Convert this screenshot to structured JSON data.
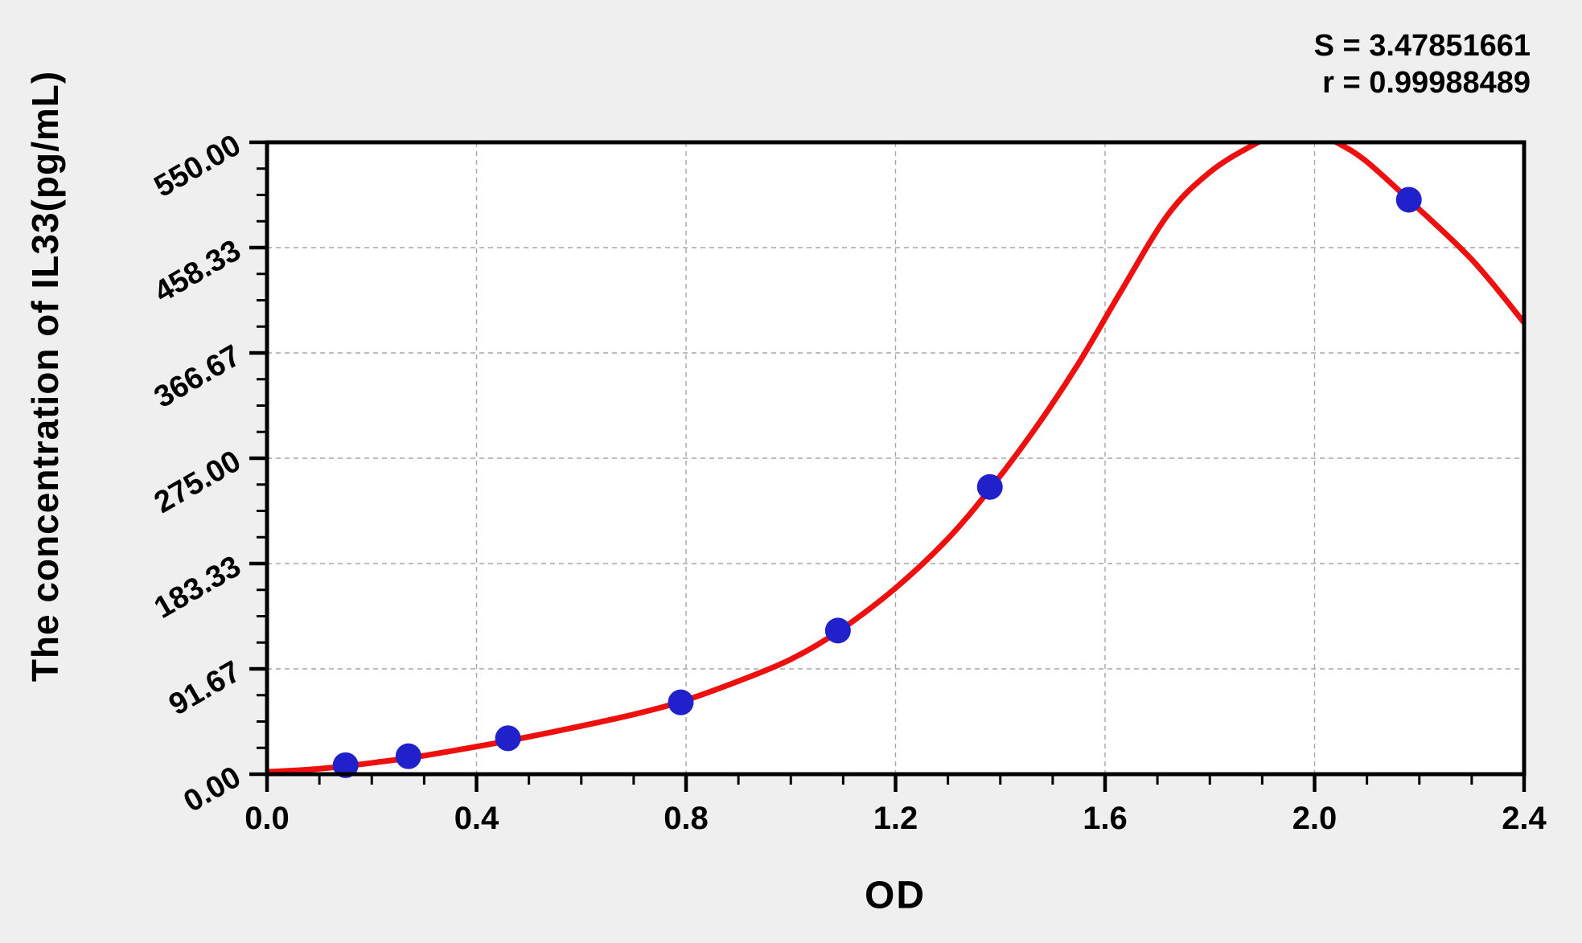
{
  "page": {
    "background_color": "#efefef",
    "plot_background_color": "#ffffff",
    "frame_color": "#000000",
    "gridline_color": "#a6a6a6"
  },
  "stats": {
    "s_line": "S = 3.47851661",
    "r_line": "r = 0.99988489"
  },
  "chart_data": {
    "type": "scatter",
    "title": "",
    "xlabel": "OD",
    "ylabel": "The concentration of IL33(pg/mL)",
    "xlim": [
      0,
      2.4
    ],
    "ylim": [
      0,
      550
    ],
    "grid": true,
    "legend_position": "none",
    "x_ticks": {
      "values": [
        0,
        0.4,
        0.8,
        1.2,
        1.6,
        2.0,
        2.4
      ],
      "labels": [
        "0.0",
        "0.4",
        "0.8",
        "1.2",
        "1.6",
        "2.0",
        "2.4"
      ],
      "minor_divisions_per_major": 4
    },
    "y_ticks": {
      "values": [
        0,
        91.67,
        183.33,
        275.0,
        366.67,
        458.33,
        550.0
      ],
      "labels": [
        "0.00",
        "91.67",
        "183.33",
        "275.00",
        "366.67",
        "458.33",
        "550.00"
      ],
      "minor_divisions_per_major": 4
    },
    "series": [
      {
        "name": "standard-points",
        "type": "scatter",
        "color": "#2121cc",
        "marker_radius": 16,
        "points": [
          [
            0.15,
            7.81
          ],
          [
            0.27,
            15.63
          ],
          [
            0.46,
            31.25
          ],
          [
            0.79,
            62.5
          ],
          [
            1.09,
            125
          ],
          [
            1.38,
            250
          ],
          [
            2.18,
            500
          ]
        ]
      },
      {
        "name": "fitted-curve",
        "type": "line",
        "color": "#ee0f0f",
        "stroke_width": 7,
        "clip_to_axes": true,
        "points": [
          [
            0.0,
            2
          ],
          [
            0.08,
            4
          ],
          [
            0.15,
            7
          ],
          [
            0.22,
            11
          ],
          [
            0.27,
            14
          ],
          [
            0.35,
            20
          ],
          [
            0.46,
            29
          ],
          [
            0.58,
            40
          ],
          [
            0.7,
            52
          ],
          [
            0.79,
            63
          ],
          [
            0.9,
            81
          ],
          [
            1.0,
            100
          ],
          [
            1.09,
            124
          ],
          [
            1.2,
            162
          ],
          [
            1.3,
            205
          ],
          [
            1.38,
            248
          ],
          [
            1.47,
            303
          ],
          [
            1.55,
            358
          ],
          [
            1.63,
            420
          ],
          [
            1.72,
            487
          ],
          [
            1.8,
            524
          ],
          [
            1.88,
            547
          ],
          [
            1.93,
            557
          ],
          [
            1.97,
            561
          ],
          [
            2.01,
            556
          ],
          [
            2.05,
            548
          ],
          [
            2.1,
            533
          ],
          [
            2.18,
            500
          ],
          [
            2.3,
            448
          ],
          [
            2.4,
            393
          ]
        ]
      }
    ]
  }
}
